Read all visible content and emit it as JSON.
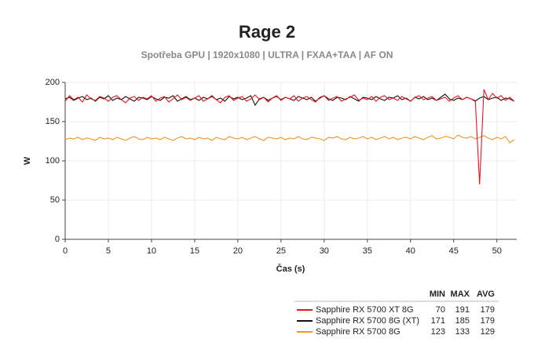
{
  "chart_data": {
    "type": "line",
    "title": "Rage 2",
    "subtitle": "Spotřeba GPU | 1920x1080 | ULTRA | FXAA+TAA | AF ON",
    "x_label": "Čas (s)",
    "y_label": "W",
    "xlim": [
      0,
      52.3
    ],
    "xticks": [
      0,
      5,
      10,
      15,
      20,
      25,
      30,
      35,
      40,
      45,
      50
    ],
    "ylim": [
      0,
      200
    ],
    "yticks": [
      0,
      50,
      100,
      150,
      200
    ],
    "grid": true,
    "stats_headers": [
      "MIN",
      "MAX",
      "AVG"
    ],
    "x": [
      0,
      0.5,
      1,
      1.5,
      2,
      2.5,
      3,
      3.5,
      4,
      4.5,
      5,
      5.5,
      6,
      6.5,
      7,
      7.5,
      8,
      8.5,
      9,
      9.5,
      10,
      10.5,
      11,
      11.5,
      12,
      12.5,
      13,
      13.5,
      14,
      14.5,
      15,
      15.5,
      16,
      16.5,
      17,
      17.5,
      18,
      18.5,
      19,
      19.5,
      20,
      20.5,
      21,
      21.5,
      22,
      22.5,
      23,
      23.5,
      24,
      24.5,
      25,
      25.5,
      26,
      26.5,
      27,
      27.5,
      28,
      28.5,
      29,
      29.5,
      30,
      30.5,
      31,
      31.5,
      32,
      32.5,
      33,
      33.5,
      34,
      34.5,
      35,
      35.5,
      36,
      36.5,
      37,
      37.5,
      38,
      38.5,
      39,
      39.5,
      40,
      40.5,
      41,
      41.5,
      42,
      42.5,
      43,
      43.5,
      44,
      44.5,
      45,
      45.5,
      46,
      46.5,
      47,
      47.5,
      48,
      48.5,
      49,
      49.5,
      50,
      50.5,
      51,
      51.5,
      52
    ],
    "series": [
      {
        "name": "Sapphire RX 5700 XT 8G",
        "color": "#e8141c",
        "min": 70,
        "max": 191,
        "avg": 179,
        "values": [
          176,
          183,
          178,
          181,
          175,
          184,
          179,
          177,
          182,
          180,
          176,
          181,
          183,
          178,
          174,
          180,
          182,
          177,
          181,
          179,
          183,
          176,
          180,
          182,
          175,
          179,
          184,
          178,
          181,
          177,
          180,
          183,
          176,
          179,
          182,
          178,
          174,
          181,
          183,
          177,
          180,
          182,
          176,
          179,
          184,
          178,
          181,
          175,
          180,
          183,
          177,
          181,
          179,
          183,
          176,
          180,
          182,
          178,
          175,
          181,
          183,
          177,
          180,
          182,
          176,
          179,
          181,
          184,
          177,
          180,
          178,
          182,
          176,
          181,
          183,
          178,
          180,
          177,
          182,
          179,
          176,
          181,
          183,
          178,
          180,
          182,
          177,
          179,
          181,
          176,
          180,
          183,
          178,
          181,
          179,
          177,
          70,
          191,
          178,
          186,
          180,
          183,
          177,
          181,
          176
        ]
      },
      {
        "name": "Sapphire RX 5700 8G (XT)",
        "color": "#111111",
        "min": 171,
        "max": 185,
        "avg": 179,
        "values": [
          179,
          181,
          177,
          180,
          182,
          178,
          180,
          176,
          181,
          179,
          183,
          177,
          180,
          178,
          182,
          179,
          176,
          181,
          180,
          178,
          182,
          179,
          177,
          181,
          180,
          183,
          176,
          179,
          182,
          178,
          180,
          177,
          181,
          179,
          183,
          178,
          180,
          176,
          182,
          179,
          181,
          178,
          180,
          183,
          171,
          179,
          181,
          177,
          180,
          182,
          178,
          181,
          179,
          177,
          182,
          180,
          178,
          181,
          176,
          180,
          183,
          179,
          177,
          181,
          180,
          178,
          182,
          179,
          176,
          181,
          180,
          178,
          182,
          179,
          177,
          181,
          180,
          183,
          178,
          180,
          176,
          181,
          179,
          182,
          178,
          180,
          177,
          181,
          185,
          179,
          177,
          180,
          178,
          181,
          179,
          176,
          180,
          182,
          178,
          180,
          181,
          177,
          180,
          179,
          176
        ]
      },
      {
        "name": "Sapphire RX 5700 8G",
        "color": "#f39422",
        "min": 123,
        "max": 133,
        "avg": 129,
        "values": [
          127,
          129,
          128,
          130,
          127,
          129,
          128,
          126,
          130,
          128,
          129,
          127,
          130,
          128,
          126,
          129,
          131,
          128,
          127,
          130,
          128,
          129,
          127,
          130,
          128,
          126,
          129,
          131,
          128,
          129,
          127,
          130,
          128,
          129,
          126,
          130,
          128,
          127,
          131,
          129,
          128,
          130,
          127,
          129,
          131,
          128,
          126,
          130,
          129,
          128,
          130,
          127,
          129,
          128,
          131,
          128,
          127,
          130,
          129,
          128,
          126,
          130,
          129,
          131,
          128,
          127,
          130,
          128,
          129,
          131,
          128,
          130,
          127,
          129,
          131,
          128,
          130,
          127,
          129,
          130,
          128,
          131,
          129,
          127,
          130,
          132,
          128,
          129,
          131,
          130,
          128,
          133,
          130,
          129,
          131,
          128,
          130,
          132,
          129,
          127,
          130,
          128,
          131,
          123,
          127
        ]
      }
    ]
  }
}
